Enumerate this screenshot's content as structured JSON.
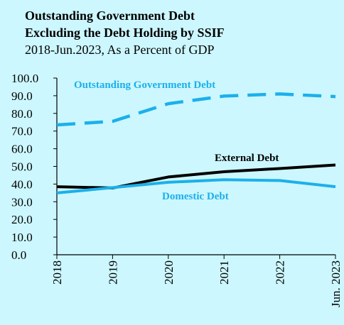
{
  "title_line1": "Outstanding Government Debt",
  "title_line2": "Excluding the Debt Holding by SSIF",
  "subtitle": "2018-Jun.2023, As a Percent of GDP",
  "chart_data": {
    "type": "line",
    "x": [
      "2018",
      "2019",
      "2020",
      "2021",
      "2022",
      "Jun. 2023"
    ],
    "ylim": [
      0,
      100
    ],
    "yticks": [
      "0.0",
      "10.0",
      "20.0",
      "30.0",
      "40.0",
      "50.0",
      "60.0",
      "70.0",
      "80.0",
      "90.0",
      "100.0"
    ],
    "grid": false,
    "series": [
      {
        "name": "Outstanding Government Debt",
        "values": [
          73.5,
          75.5,
          85.5,
          89.8,
          91.0,
          89.5
        ],
        "color": "#1cb0ea",
        "style": "dashed"
      },
      {
        "name": "External Debt",
        "values": [
          38.5,
          37.8,
          44.0,
          47.0,
          48.8,
          50.8
        ],
        "color": "#000000",
        "style": "solid"
      },
      {
        "name": "Domestic Debt",
        "values": [
          35.0,
          38.0,
          41.0,
          42.5,
          42.0,
          38.5
        ],
        "color": "#1cb0ea",
        "style": "solid"
      }
    ]
  }
}
